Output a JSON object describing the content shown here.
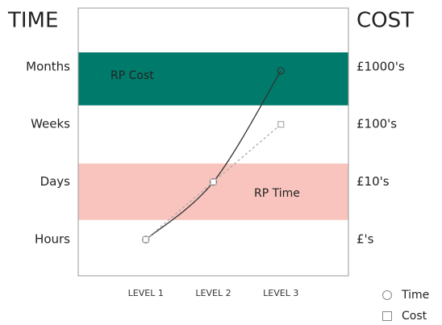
{
  "chart_data": {
    "type": "line",
    "title": "TIME",
    "y2_title": "COST",
    "categories": [
      "LEVEL 1",
      "LEVEL 2",
      "LEVEL 3"
    ],
    "ylim": [
      0.37,
      5.02
    ],
    "yticks": [
      {
        "value": 4,
        "label": "Months"
      },
      {
        "value": 3,
        "label": "Weeks"
      },
      {
        "value": 2,
        "label": "Days"
      },
      {
        "value": 1,
        "label": "Hours"
      }
    ],
    "y2lim": [
      0.37,
      5.02
    ],
    "y2ticks": [
      {
        "value": 4,
        "label": "£1000's"
      },
      {
        "value": 3,
        "label": "£100's"
      },
      {
        "value": 2,
        "label": "£10's"
      },
      {
        "value": 1,
        "label": "£'s"
      }
    ],
    "bands": [
      {
        "label": "RP Cost",
        "from": 3.33,
        "to": 4.25,
        "color": "#007a6a"
      },
      {
        "label": "RP Time",
        "from": 1.34,
        "to": 2.32,
        "color": "#f8c4bd"
      }
    ],
    "series": [
      {
        "name": "Time",
        "color": "#333333",
        "marker": "circle",
        "values": [
          1,
          2,
          3.93
        ]
      },
      {
        "name": "Cost",
        "color": "#aaaaaa",
        "marker": "square",
        "axis": "y2",
        "values": [
          1,
          2,
          3
        ]
      }
    ],
    "legend": "bottom-right"
  }
}
